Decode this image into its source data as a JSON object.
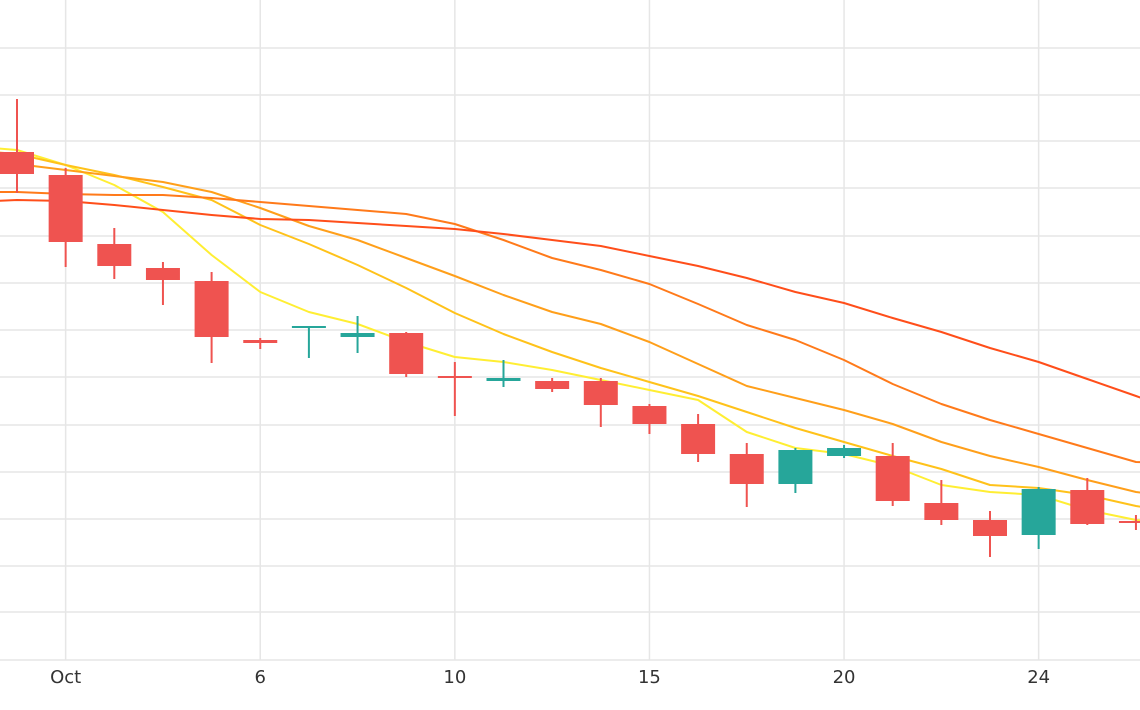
{
  "chart_data": {
    "type": "candlestick",
    "x_tick_labels": [
      {
        "label": "Oct",
        "x": 1
      },
      {
        "label": "6",
        "x": 5
      },
      {
        "label": "10",
        "x": 9
      },
      {
        "label": "15",
        "x": 13
      },
      {
        "label": "20",
        "x": 17
      },
      {
        "label": "24",
        "x": 21
      }
    ],
    "ylim": [
      0,
      660
    ],
    "grid": true,
    "colors": {
      "up": "#26a69a",
      "down": "#ef5350",
      "grid": "#e6e6e6"
    },
    "candles": [
      {
        "x": 0,
        "open": 508,
        "close": 486,
        "high": 561,
        "low": 467
      },
      {
        "x": 1,
        "open": 485,
        "close": 418,
        "high": 492,
        "low": 393
      },
      {
        "x": 2,
        "open": 416,
        "close": 394,
        "high": 432,
        "low": 381
      },
      {
        "x": 3,
        "open": 392,
        "close": 380,
        "high": 398,
        "low": 355
      },
      {
        "x": 4,
        "open": 379,
        "close": 323,
        "high": 388,
        "low": 297
      },
      {
        "x": 5,
        "open": 320,
        "close": 317,
        "high": 322,
        "low": 311
      },
      {
        "x": 6,
        "open": 332,
        "close": 334,
        "high": 334,
        "low": 302
      },
      {
        "x": 7,
        "open": 323,
        "close": 327,
        "high": 344,
        "low": 307
      },
      {
        "x": 8,
        "open": 327,
        "close": 286,
        "high": 328,
        "low": 283
      },
      {
        "x": 9,
        "open": 284,
        "close": 283,
        "high": 298,
        "low": 244
      },
      {
        "x": 10,
        "open": 279,
        "close": 282,
        "high": 300,
        "low": 273
      },
      {
        "x": 11,
        "open": 279,
        "close": 271,
        "high": 282,
        "low": 268
      },
      {
        "x": 12,
        "open": 279,
        "close": 255,
        "high": 282,
        "low": 233
      },
      {
        "x": 13,
        "open": 254,
        "close": 236,
        "high": 256,
        "low": 226
      },
      {
        "x": 14,
        "open": 236,
        "close": 206,
        "high": 246,
        "low": 198
      },
      {
        "x": 15,
        "open": 206,
        "close": 176,
        "high": 217,
        "low": 153
      },
      {
        "x": 16,
        "open": 176,
        "close": 210,
        "high": 212,
        "low": 167
      },
      {
        "x": 17,
        "open": 204,
        "close": 212,
        "high": 215,
        "low": 202
      },
      {
        "x": 18,
        "open": 204,
        "close": 159,
        "high": 217,
        "low": 154
      },
      {
        "x": 19,
        "open": 157,
        "close": 140,
        "high": 180,
        "low": 135
      },
      {
        "x": 20,
        "open": 140,
        "close": 124,
        "high": 149,
        "low": 103
      },
      {
        "x": 21,
        "open": 125,
        "close": 171,
        "high": 173,
        "low": 111
      },
      {
        "x": 22,
        "open": 170,
        "close": 136,
        "high": 182,
        "low": 135
      },
      {
        "x": 23,
        "open": 139,
        "close": 138,
        "high": 145,
        "low": 130
      }
    ],
    "overlay_lines": [
      {
        "color": "#ffee33",
        "points": [
          [
            -0.5,
            512
          ],
          [
            0,
            510
          ],
          [
            1,
            495
          ],
          [
            2,
            475
          ],
          [
            3,
            448
          ],
          [
            4,
            405
          ],
          [
            5,
            368
          ],
          [
            6,
            348
          ],
          [
            7,
            336
          ],
          [
            8,
            318
          ],
          [
            9,
            303
          ],
          [
            10,
            298
          ],
          [
            11,
            290
          ],
          [
            12,
            280
          ],
          [
            13,
            270
          ],
          [
            14,
            260
          ],
          [
            15,
            228
          ],
          [
            16,
            212
          ],
          [
            17,
            206
          ],
          [
            18,
            194
          ],
          [
            19,
            175
          ],
          [
            20,
            168
          ],
          [
            21,
            165
          ],
          [
            22,
            150
          ],
          [
            23,
            140
          ],
          [
            23.5,
            138
          ]
        ]
      },
      {
        "color": "#ffc21a",
        "points": [
          [
            -0.5,
            508
          ],
          [
            0,
            506
          ],
          [
            1,
            495
          ],
          [
            2,
            485
          ],
          [
            3,
            473
          ],
          [
            4,
            460
          ],
          [
            5,
            435
          ],
          [
            6,
            416
          ],
          [
            7,
            395
          ],
          [
            8,
            372
          ],
          [
            9,
            347
          ],
          [
            10,
            326
          ],
          [
            11,
            308
          ],
          [
            12,
            292
          ],
          [
            13,
            278
          ],
          [
            14,
            264
          ],
          [
            15,
            248
          ],
          [
            16,
            232
          ],
          [
            17,
            218
          ],
          [
            18,
            204
          ],
          [
            19,
            191
          ],
          [
            20,
            175
          ],
          [
            21,
            172
          ],
          [
            22,
            165
          ],
          [
            23,
            154
          ],
          [
            23.5,
            150
          ]
        ]
      },
      {
        "color": "#ff9f1a",
        "points": [
          [
            -0.5,
            497
          ],
          [
            0,
            496
          ],
          [
            1,
            490
          ],
          [
            2,
            484
          ],
          [
            3,
            478
          ],
          [
            4,
            468
          ],
          [
            5,
            452
          ],
          [
            6,
            434
          ],
          [
            7,
            420
          ],
          [
            8,
            402
          ],
          [
            9,
            384
          ],
          [
            10,
            365
          ],
          [
            11,
            348
          ],
          [
            12,
            336
          ],
          [
            13,
            318
          ],
          [
            14,
            296
          ],
          [
            15,
            274
          ],
          [
            16,
            262
          ],
          [
            17,
            250
          ],
          [
            18,
            236
          ],
          [
            19,
            218
          ],
          [
            20,
            204
          ],
          [
            21,
            193
          ],
          [
            22,
            180
          ],
          [
            23,
            168
          ],
          [
            23.5,
            165
          ]
        ]
      },
      {
        "color": "#ff7a1a",
        "points": [
          [
            -0.5,
            468
          ],
          [
            0,
            468
          ],
          [
            1,
            466
          ],
          [
            2,
            465
          ],
          [
            3,
            465
          ],
          [
            4,
            462
          ],
          [
            5,
            458
          ],
          [
            6,
            454
          ],
          [
            7,
            450
          ],
          [
            8,
            446
          ],
          [
            9,
            436
          ],
          [
            10,
            420
          ],
          [
            11,
            402
          ],
          [
            12,
            390
          ],
          [
            13,
            376
          ],
          [
            14,
            356
          ],
          [
            15,
            335
          ],
          [
            16,
            320
          ],
          [
            17,
            300
          ],
          [
            18,
            276
          ],
          [
            19,
            256
          ],
          [
            20,
            240
          ],
          [
            21,
            226
          ],
          [
            22,
            212
          ],
          [
            23,
            198
          ],
          [
            23.5,
            197
          ]
        ]
      },
      {
        "color": "#ff4e1a",
        "points": [
          [
            -0.5,
            459
          ],
          [
            0,
            460
          ],
          [
            1,
            459
          ],
          [
            2,
            455
          ],
          [
            3,
            450
          ],
          [
            4,
            445
          ],
          [
            5,
            441
          ],
          [
            6,
            440
          ],
          [
            7,
            437
          ],
          [
            8,
            434
          ],
          [
            9,
            431
          ],
          [
            10,
            426
          ],
          [
            11,
            420
          ],
          [
            12,
            414
          ],
          [
            13,
            404
          ],
          [
            14,
            394
          ],
          [
            15,
            382
          ],
          [
            16,
            368
          ],
          [
            17,
            357
          ],
          [
            18,
            342
          ],
          [
            19,
            328
          ],
          [
            20,
            312
          ],
          [
            21,
            298
          ],
          [
            22,
            281
          ],
          [
            23,
            264
          ],
          [
            23.5,
            255
          ]
        ]
      }
    ]
  }
}
